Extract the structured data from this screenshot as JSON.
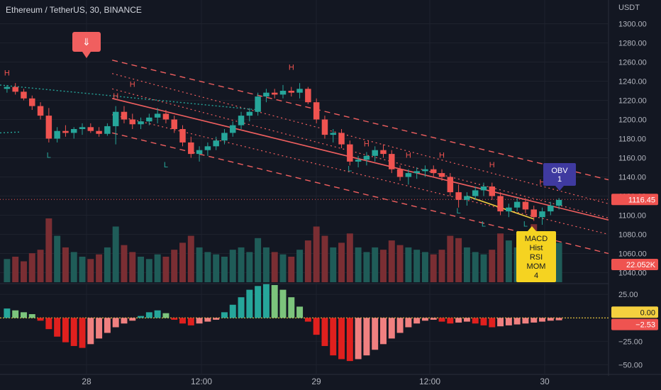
{
  "header": {
    "title": "Ethereum / TetherUS, 30, BINANCE"
  },
  "price_axis": {
    "currency": "USDT",
    "ticks": [
      "1300.00",
      "1280.00",
      "1260.00",
      "1240.00",
      "1220.00",
      "1200.00",
      "1180.00",
      "1160.00",
      "1140.00",
      "1120.00",
      "1100.00",
      "1080.00",
      "1060.00",
      "1040.00"
    ],
    "tick_values": [
      1300,
      1280,
      1260,
      1240,
      1220,
      1200,
      1180,
      1160,
      1140,
      1120,
      1100,
      1080,
      1060,
      1040
    ],
    "last_price_label": "1116.45",
    "last_price": 1116.45,
    "volume_label": "22.052K"
  },
  "osc_axis": {
    "ticks": [
      "25.00",
      "0.00",
      "−25.00",
      "−50.00"
    ],
    "tick_values": [
      25,
      0,
      -25,
      -50
    ],
    "zero_label": "0.00",
    "value_label": "−2.53",
    "value": -2.53
  },
  "time_axis": {
    "labels": [
      "28",
      "12:00",
      "29",
      "12:00",
      "30"
    ]
  },
  "annotations": {
    "sell_arrow": "⇓",
    "obv_label": "OBV\n1",
    "macd_label": "MACD\nHist\nRSI\nMOM\n4",
    "high_marker": "H",
    "low_marker": "L"
  },
  "colors": {
    "up": "#26a69a",
    "down": "#ef5350",
    "vol_up": "#1f5c58",
    "vol_down": "#7a2e33",
    "channel": "#f05f5f",
    "teal_dotted": "#26a69a",
    "yellow": "#f4d03f",
    "obv_box": "#3f3aa0",
    "macd_box": "#f5d321",
    "sell_box": "#f05f5f",
    "grid": "#1e222d",
    "axis_text": "#b2b5be"
  },
  "chart_data": {
    "type": "candlestick",
    "title": "Ethereum / TetherUS, 30, BINANCE",
    "y_unit": "USDT",
    "ylim": [
      1030,
      1310
    ],
    "x_labels": [
      "28",
      "12:00",
      "29",
      "12:00",
      "30"
    ],
    "ohlc_approx": [
      [
        1232,
        1236,
        1228,
        1234
      ],
      [
        1234,
        1238,
        1226,
        1229
      ],
      [
        1229,
        1232,
        1220,
        1222
      ],
      [
        1222,
        1225,
        1210,
        1214
      ],
      [
        1214,
        1218,
        1200,
        1204
      ],
      [
        1204,
        1212,
        1176,
        1180
      ],
      [
        1180,
        1192,
        1176,
        1188
      ],
      [
        1188,
        1194,
        1182,
        1186
      ],
      [
        1186,
        1192,
        1180,
        1190
      ],
      [
        1190,
        1196,
        1184,
        1192
      ],
      [
        1192,
        1196,
        1186,
        1188
      ],
      [
        1188,
        1192,
        1182,
        1185
      ],
      [
        1185,
        1196,
        1183,
        1193
      ],
      [
        1193,
        1214,
        1174,
        1208
      ],
      [
        1208,
        1214,
        1196,
        1200
      ],
      [
        1200,
        1206,
        1190,
        1195
      ],
      [
        1195,
        1202,
        1190,
        1198
      ],
      [
        1198,
        1206,
        1194,
        1202
      ],
      [
        1202,
        1212,
        1196,
        1206
      ],
      [
        1206,
        1210,
        1196,
        1200
      ],
      [
        1200,
        1204,
        1186,
        1190
      ],
      [
        1190,
        1194,
        1172,
        1176
      ],
      [
        1176,
        1182,
        1160,
        1164
      ],
      [
        1164,
        1172,
        1156,
        1168
      ],
      [
        1168,
        1176,
        1162,
        1172
      ],
      [
        1172,
        1182,
        1168,
        1178
      ],
      [
        1178,
        1190,
        1174,
        1186
      ],
      [
        1186,
        1198,
        1182,
        1194
      ],
      [
        1194,
        1208,
        1190,
        1204
      ],
      [
        1204,
        1212,
        1198,
        1208
      ],
      [
        1208,
        1228,
        1204,
        1224
      ],
      [
        1224,
        1232,
        1218,
        1228
      ],
      [
        1228,
        1232,
        1222,
        1226
      ],
      [
        1226,
        1236,
        1222,
        1230
      ],
      [
        1230,
        1234,
        1224,
        1228
      ],
      [
        1228,
        1238,
        1222,
        1232
      ],
      [
        1232,
        1234,
        1216,
        1218
      ],
      [
        1218,
        1222,
        1196,
        1200
      ],
      [
        1200,
        1204,
        1180,
        1184
      ],
      [
        1184,
        1190,
        1176,
        1186
      ],
      [
        1186,
        1190,
        1170,
        1174
      ],
      [
        1174,
        1178,
        1152,
        1156
      ],
      [
        1156,
        1162,
        1150,
        1158
      ],
      [
        1158,
        1166,
        1152,
        1162
      ],
      [
        1162,
        1172,
        1156,
        1168
      ],
      [
        1168,
        1174,
        1160,
        1164
      ],
      [
        1164,
        1168,
        1144,
        1148
      ],
      [
        1148,
        1152,
        1136,
        1140
      ],
      [
        1140,
        1148,
        1132,
        1144
      ],
      [
        1144,
        1150,
        1138,
        1146
      ],
      [
        1146,
        1152,
        1140,
        1148
      ],
      [
        1148,
        1152,
        1140,
        1144
      ],
      [
        1144,
        1148,
        1136,
        1140
      ],
      [
        1140,
        1144,
        1120,
        1124
      ],
      [
        1124,
        1132,
        1108,
        1116
      ],
      [
        1116,
        1124,
        1110,
        1120
      ],
      [
        1120,
        1130,
        1116,
        1126
      ],
      [
        1126,
        1134,
        1120,
        1130
      ],
      [
        1130,
        1134,
        1116,
        1120
      ],
      [
        1120,
        1124,
        1100,
        1104
      ],
      [
        1104,
        1112,
        1098,
        1108
      ],
      [
        1108,
        1118,
        1104,
        1114
      ],
      [
        1114,
        1118,
        1102,
        1106
      ],
      [
        1106,
        1110,
        1094,
        1098
      ],
      [
        1098,
        1108,
        1090,
        1104
      ],
      [
        1104,
        1114,
        1100,
        1110
      ],
      [
        1110,
        1118,
        1106,
        1116
      ]
    ],
    "volume_approx": [
      20,
      22,
      18,
      25,
      28,
      55,
      40,
      30,
      26,
      22,
      20,
      24,
      30,
      48,
      32,
      26,
      22,
      20,
      24,
      22,
      28,
      34,
      40,
      30,
      26,
      24,
      22,
      28,
      30,
      26,
      38,
      30,
      26,
      24,
      22,
      28,
      36,
      48,
      40,
      30,
      34,
      42,
      30,
      26,
      30,
      28,
      36,
      32,
      30,
      28,
      26,
      24,
      28,
      40,
      38,
      30,
      26,
      24,
      28,
      42,
      36,
      30,
      34,
      50,
      44,
      40,
      34
    ],
    "oscillator_approx": [
      10,
      8,
      6,
      4,
      -3,
      -12,
      -20,
      -26,
      -30,
      -32,
      -28,
      -22,
      -16,
      -10,
      -6,
      -3,
      2,
      6,
      8,
      5,
      -2,
      -6,
      -8,
      -6,
      -4,
      -2,
      6,
      14,
      22,
      30,
      34,
      36,
      35,
      30,
      22,
      12,
      -4,
      -18,
      -30,
      -40,
      -44,
      -46,
      -44,
      -40,
      -34,
      -28,
      -22,
      -16,
      -10,
      -6,
      -3,
      -2,
      -4,
      -6,
      -5,
      -4,
      -6,
      -8,
      -10,
      -9,
      -8,
      -7,
      -6,
      -5,
      -4,
      -3,
      -2.53
    ],
    "osc_ylim": [
      -58,
      35
    ],
    "legend": "none",
    "grid": true
  }
}
